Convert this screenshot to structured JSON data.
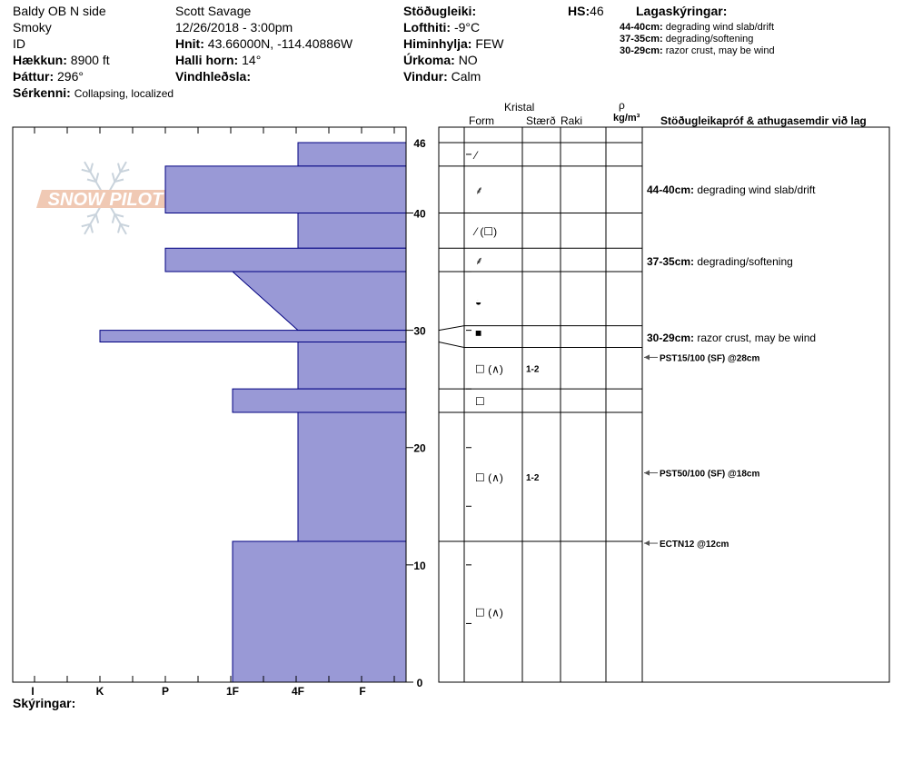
{
  "header": {
    "location": "Baldy OB N side",
    "range": "Smoky",
    "id_label": "ID",
    "elevation_label": "Hækkun:",
    "elevation_value": "8900 ft",
    "aspect_label": "Þáttur:",
    "aspect_value": "296°",
    "observer": "Scott Savage",
    "datetime": "12/26/2018 - 3:00pm",
    "coords_label": "Hnit:",
    "coords_value": "43.66000N, -114.40886W",
    "slope_label": "Halli horn:",
    "slope_value": "14°",
    "wind_loading_label": "Vindhleðsla:",
    "stability_label": "Stöðugleiki:",
    "air_temp_label": "Lofthiti:",
    "air_temp_value": "-9°C",
    "sky_label": "Himinhylja:",
    "sky_value": "FEW",
    "precip_label": "Úrkoma:",
    "precip_value": "NO",
    "wind_label": "Vindur:",
    "wind_value": "Calm",
    "hs_label": "HS:",
    "hs_value": "46",
    "special_label": "Sérkenni:",
    "special_value": "Collapsing, localized"
  },
  "layer_notes": {
    "title": "Lagaskýringar:",
    "items": [
      {
        "range": "44-40cm:",
        "text": "degrading wind slab/drift"
      },
      {
        "range": "37-35cm:",
        "text": "degrading/softening"
      },
      {
        "range": "30-29cm:",
        "text": "razor crust, may be wind"
      }
    ]
  },
  "columns": {
    "crystal": "Kristal",
    "form": "Form",
    "size": "Stærð",
    "moisture": "Raki",
    "density_symbol": "ρ",
    "density_unit": "kg/m³",
    "tests": "Stöðugleikapróf & athugasemdir við lag"
  },
  "logo_text": "SNOW PILOT",
  "legend_label": "Skýringar:",
  "chart_data": {
    "type": "bar",
    "orientation": "horizontal",
    "xlabel": "",
    "ylabel": "",
    "x_categories": [
      "I",
      "K",
      "P",
      "1F",
      "4F",
      "F"
    ],
    "ylim": [
      0,
      46
    ],
    "y_ticks": [
      0,
      10,
      20,
      30,
      40,
      46
    ],
    "hardness_profile": [
      {
        "top": 46,
        "bottom": 44,
        "hardness": 1
      },
      {
        "top": 44,
        "bottom": 40,
        "hardness": 3
      },
      {
        "top": 40,
        "bottom": 37,
        "hardness": 1
      },
      {
        "top": 37,
        "bottom": 35,
        "hardness": 3
      },
      {
        "top": 35,
        "bottom": 30,
        "hardness": 2,
        "hardness_bottom": 1
      },
      {
        "top": 30,
        "bottom": 29,
        "hardness": 4
      },
      {
        "top": 29,
        "bottom": 25,
        "hardness": 1
      },
      {
        "top": 25,
        "bottom": 23,
        "hardness": 2
      },
      {
        "top": 23,
        "bottom": 12,
        "hardness": 1
      },
      {
        "top": 12,
        "bottom": 0,
        "hardness": 2
      }
    ],
    "boundaries": [
      46,
      44,
      40,
      37,
      35,
      30,
      29,
      25,
      23,
      12,
      0
    ],
    "layer_grains": [
      {
        "top": 46,
        "bottom": 44,
        "form": "⁄",
        "size": ""
      },
      {
        "top": 44,
        "bottom": 40,
        "form": "⸙",
        "size": ""
      },
      {
        "top": 40,
        "bottom": 37,
        "form": "⁄ (☐)",
        "size": ""
      },
      {
        "top": 37,
        "bottom": 35,
        "form": "⸙",
        "size": ""
      },
      {
        "top": 35,
        "bottom": 30,
        "form": "◒",
        "size": ""
      },
      {
        "top": 30,
        "bottom": 29,
        "form": "■",
        "size": ""
      },
      {
        "top": 29,
        "bottom": 25,
        "form": "☐ (∧)",
        "size": "1-2"
      },
      {
        "top": 25,
        "bottom": 23,
        "form": "☐",
        "size": ""
      },
      {
        "top": 23,
        "bottom": 12,
        "form": "☐ (∧)",
        "size": "1-2"
      },
      {
        "top": 12,
        "bottom": 0,
        "form": "☐ (∧)",
        "size": ""
      }
    ],
    "comments": [
      {
        "depth_top": 44,
        "depth_bottom": 40,
        "range": "44-40cm:",
        "text": "degrading wind slab/drift"
      },
      {
        "depth_top": 37,
        "depth_bottom": 35,
        "range": "37-35cm:",
        "text": "degrading/softening"
      },
      {
        "depth_top": 30,
        "depth_bottom": 29,
        "range": "30-29cm:",
        "text": "razor crust, may be wind"
      }
    ],
    "tests": [
      {
        "depth": 28,
        "label": "PST15/100 (SF) @28cm"
      },
      {
        "depth": 18,
        "label": "PST50/100 (SF) @18cm"
      },
      {
        "depth": 12,
        "label": "ECTN12 @12cm"
      }
    ]
  }
}
